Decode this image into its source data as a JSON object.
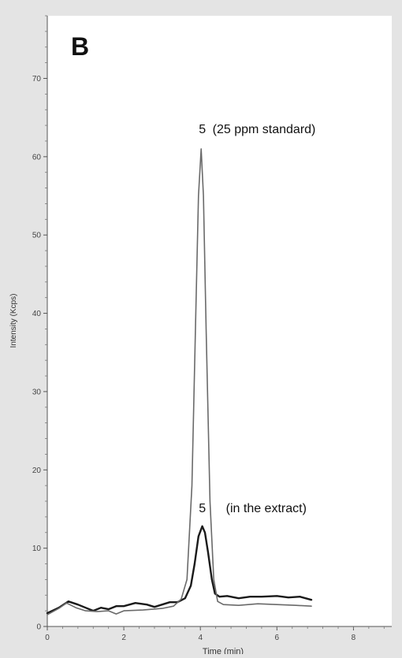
{
  "panel_label": "B",
  "chart_data": {
    "type": "line",
    "xlabel": "Time (min)",
    "ylabel": "Intensity (Kcps)",
    "xlim": [
      0,
      9
    ],
    "ylim": [
      0,
      78
    ],
    "x_ticks": [
      0,
      2,
      4,
      6,
      8
    ],
    "y_ticks": [
      0,
      10,
      20,
      30,
      40,
      50,
      60,
      70
    ],
    "grid": false,
    "series": [
      {
        "color": "#1a1a1a",
        "points": [
          [
            0,
            1.7
          ],
          [
            0.3,
            2.4
          ],
          [
            0.55,
            3.2
          ],
          [
            0.8,
            2.8
          ],
          [
            1.0,
            2.4
          ],
          [
            1.2,
            2.0
          ],
          [
            1.4,
            2.4
          ],
          [
            1.6,
            2.2
          ],
          [
            1.8,
            2.6
          ],
          [
            2.0,
            2.6
          ],
          [
            2.3,
            3.0
          ],
          [
            2.6,
            2.8
          ],
          [
            2.8,
            2.5
          ],
          [
            3.0,
            2.8
          ],
          [
            3.2,
            3.1
          ],
          [
            3.4,
            3.1
          ],
          [
            3.6,
            3.6
          ],
          [
            3.75,
            5.2
          ],
          [
            3.85,
            8.0
          ],
          [
            3.95,
            11.5
          ],
          [
            4.05,
            12.8
          ],
          [
            4.12,
            12.0
          ],
          [
            4.2,
            9.5
          ],
          [
            4.3,
            6.0
          ],
          [
            4.38,
            4.2
          ],
          [
            4.5,
            3.8
          ],
          [
            4.7,
            3.9
          ],
          [
            5.0,
            3.6
          ],
          [
            5.3,
            3.8
          ],
          [
            5.6,
            3.8
          ],
          [
            6.0,
            3.9
          ],
          [
            6.3,
            3.7
          ],
          [
            6.6,
            3.8
          ],
          [
            6.9,
            3.4
          ]
        ]
      },
      {
        "color": "#6a6a6a",
        "points": [
          [
            0,
            1.5
          ],
          [
            0.3,
            2.3
          ],
          [
            0.5,
            3.0
          ],
          [
            0.75,
            2.4
          ],
          [
            1.0,
            2.0
          ],
          [
            1.3,
            1.9
          ],
          [
            1.6,
            2.0
          ],
          [
            1.8,
            1.6
          ],
          [
            2.0,
            2.0
          ],
          [
            2.5,
            2.1
          ],
          [
            3.0,
            2.3
          ],
          [
            3.3,
            2.6
          ],
          [
            3.5,
            3.5
          ],
          [
            3.65,
            6.0
          ],
          [
            3.78,
            18.0
          ],
          [
            3.88,
            40.0
          ],
          [
            3.95,
            55.0
          ],
          [
            4.02,
            61.0
          ],
          [
            4.08,
            55.0
          ],
          [
            4.15,
            38.0
          ],
          [
            4.25,
            16.0
          ],
          [
            4.35,
            6.0
          ],
          [
            4.45,
            3.2
          ],
          [
            4.6,
            2.8
          ],
          [
            5.0,
            2.7
          ],
          [
            5.5,
            2.9
          ],
          [
            6.0,
            2.8
          ],
          [
            6.5,
            2.7
          ],
          [
            6.9,
            2.6
          ]
        ]
      }
    ],
    "annotations": [
      {
        "peak": "5",
        "text": "(25 ppm standard)",
        "x": 4.05,
        "y": 61
      },
      {
        "peak": "5",
        "text": "(in the extract)",
        "x": 4.05,
        "y": 12.8
      }
    ]
  }
}
